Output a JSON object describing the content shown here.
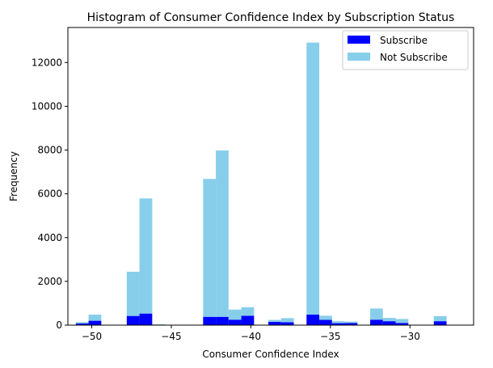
{
  "chart_data": {
    "type": "bar",
    "stacked": true,
    "title": "Histogram of Consumer Confidence Index by Subscription Status",
    "xlabel": "Consumer Confidence Index",
    "ylabel": "Frequency",
    "xlim": [
      -51.5,
      -26.0
    ],
    "ylim": [
      0,
      13600
    ],
    "xticks": [
      -50,
      -45,
      -40,
      -35,
      -30
    ],
    "xtick_labels": [
      "−50",
      "−45",
      "−40",
      "−35",
      "−30"
    ],
    "yticks": [
      0,
      2000,
      4000,
      6000,
      8000,
      10000,
      12000
    ],
    "ytick_labels": [
      "0",
      "2000",
      "4000",
      "6000",
      "8000",
      "10000",
      "12000"
    ],
    "grid": false,
    "legend_position": "top-right",
    "bins": [
      [
        -51.0,
        -50.2
      ],
      [
        -50.2,
        -49.4
      ],
      [
        -47.8,
        -47.0
      ],
      [
        -47.0,
        -46.2
      ],
      [
        -46.2,
        -45.4
      ],
      [
        -43.0,
        -42.2
      ],
      [
        -42.2,
        -41.4
      ],
      [
        -41.4,
        -40.6
      ],
      [
        -40.6,
        -39.8
      ],
      [
        -38.9,
        -38.1
      ],
      [
        -38.1,
        -37.3
      ],
      [
        -36.5,
        -35.7
      ],
      [
        -35.7,
        -34.9
      ],
      [
        -34.9,
        -34.1
      ],
      [
        -34.1,
        -33.3
      ],
      [
        -32.5,
        -31.7
      ],
      [
        -31.7,
        -30.9
      ],
      [
        -30.9,
        -30.1
      ],
      [
        -28.5,
        -27.7
      ]
    ],
    "series": [
      {
        "name": "Subscribe",
        "color": "#0000ff",
        "values": [
          80,
          200,
          420,
          530,
          20,
          380,
          380,
          250,
          430,
          150,
          130,
          480,
          240,
          90,
          100,
          250,
          180,
          100,
          180
        ]
      },
      {
        "name": "Not Subscribe",
        "color": "#87ceeb",
        "values": [
          60,
          280,
          2020,
          5260,
          20,
          6300,
          7600,
          460,
          390,
          90,
          190,
          12430,
          190,
          90,
          60,
          510,
          150,
          180,
          230
        ]
      }
    ]
  }
}
